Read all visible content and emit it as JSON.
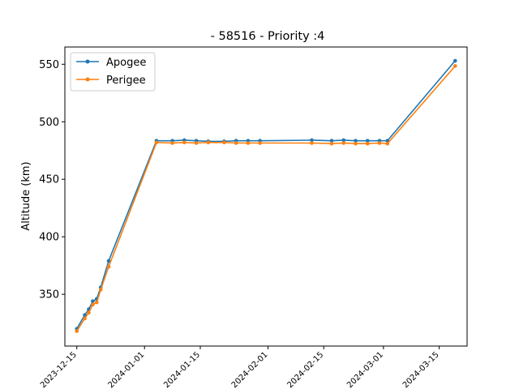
{
  "chart_data": {
    "type": "line",
    "title": "- 58516 - Priority :4",
    "xlabel": "",
    "ylabel": "Altitude (km)",
    "x_axis_type": "date",
    "xlim": [
      "2023-12-12",
      "2024-03-22"
    ],
    "ylim": [
      305,
      565
    ],
    "x_ticks": [
      "2023-12-15",
      "2024-01-01",
      "2024-01-15",
      "2024-02-01",
      "2024-02-15",
      "2024-03-01",
      "2024-03-15"
    ],
    "y_ticks": [
      350,
      400,
      450,
      500,
      550
    ],
    "grid": false,
    "legend_position": "top-left",
    "series": [
      {
        "name": "Apogee",
        "color": "#1f77b4",
        "marker": "circle",
        "points": [
          {
            "x": "2023-12-15",
            "y": 320
          },
          {
            "x": "2023-12-17",
            "y": 332
          },
          {
            "x": "2023-12-18",
            "y": 337
          },
          {
            "x": "2023-12-19",
            "y": 344
          },
          {
            "x": "2023-12-20",
            "y": 346
          },
          {
            "x": "2023-12-21",
            "y": 356
          },
          {
            "x": "2023-12-23",
            "y": 379
          },
          {
            "x": "2024-01-04",
            "y": 483.5
          },
          {
            "x": "2024-01-08",
            "y": 483.5
          },
          {
            "x": "2024-01-11",
            "y": 484
          },
          {
            "x": "2024-01-14",
            "y": 483.5
          },
          {
            "x": "2024-01-17",
            "y": 483
          },
          {
            "x": "2024-01-21",
            "y": 483
          },
          {
            "x": "2024-01-24",
            "y": 483.5
          },
          {
            "x": "2024-01-27",
            "y": 483.5
          },
          {
            "x": "2024-01-30",
            "y": 483.5
          },
          {
            "x": "2024-02-12",
            "y": 484
          },
          {
            "x": "2024-02-17",
            "y": 483.5
          },
          {
            "x": "2024-02-20",
            "y": 484
          },
          {
            "x": "2024-02-23",
            "y": 483.5
          },
          {
            "x": "2024-02-26",
            "y": 483.5
          },
          {
            "x": "2024-02-29",
            "y": 483.5
          },
          {
            "x": "2024-03-02",
            "y": 483.5
          },
          {
            "x": "2024-03-19",
            "y": 553
          }
        ]
      },
      {
        "name": "Perigee",
        "color": "#ff7f0e",
        "marker": "circle",
        "points": [
          {
            "x": "2023-12-15",
            "y": 318
          },
          {
            "x": "2023-12-17",
            "y": 329
          },
          {
            "x": "2023-12-18",
            "y": 334
          },
          {
            "x": "2023-12-19",
            "y": 341
          },
          {
            "x": "2023-12-20",
            "y": 343
          },
          {
            "x": "2023-12-21",
            "y": 354
          },
          {
            "x": "2023-12-23",
            "y": 374
          },
          {
            "x": "2024-01-04",
            "y": 482
          },
          {
            "x": "2024-01-08",
            "y": 481.5
          },
          {
            "x": "2024-01-11",
            "y": 482
          },
          {
            "x": "2024-01-14",
            "y": 481.5
          },
          {
            "x": "2024-01-17",
            "y": 482
          },
          {
            "x": "2024-01-21",
            "y": 482
          },
          {
            "x": "2024-01-24",
            "y": 481.5
          },
          {
            "x": "2024-01-27",
            "y": 481.5
          },
          {
            "x": "2024-01-30",
            "y": 481.5
          },
          {
            "x": "2024-02-12",
            "y": 481.5
          },
          {
            "x": "2024-02-17",
            "y": 481
          },
          {
            "x": "2024-02-20",
            "y": 481.5
          },
          {
            "x": "2024-02-23",
            "y": 481
          },
          {
            "x": "2024-02-26",
            "y": 481
          },
          {
            "x": "2024-02-29",
            "y": 481.5
          },
          {
            "x": "2024-03-02",
            "y": 481
          },
          {
            "x": "2024-03-19",
            "y": 548.5
          }
        ]
      }
    ]
  }
}
